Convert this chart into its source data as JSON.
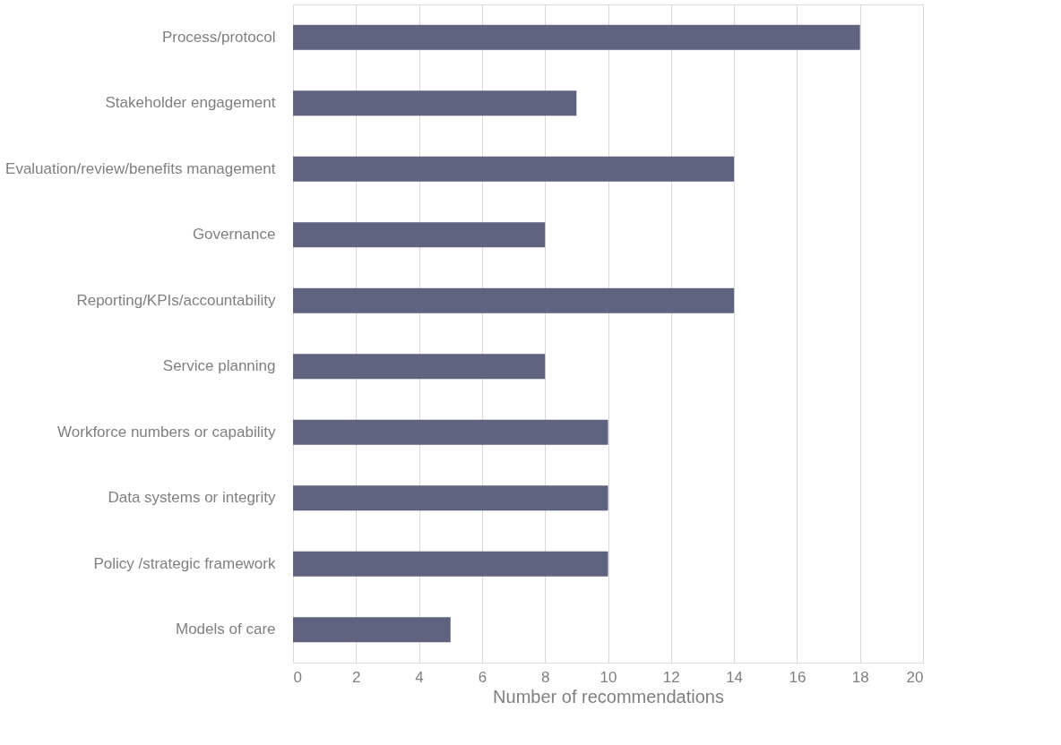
{
  "chart_data": {
    "type": "bar",
    "orientation": "horizontal",
    "xlabel": "Number of recommendations",
    "categories": [
      "Process/protocol",
      "Stakeholder engagement",
      "Evaluation/review/benefits management",
      "Governance",
      "Reporting/KPIs/accountability",
      "Service planning",
      "Workforce numbers or capability",
      "Data systems or integrity",
      "Policy /strategic framework",
      "Models of care"
    ],
    "values": [
      18,
      9,
      14,
      8,
      14,
      8,
      10,
      10,
      10,
      5
    ],
    "color": "#5f6380",
    "xlim": [
      0,
      20
    ],
    "xticks": [
      0,
      2,
      4,
      6,
      8,
      10,
      12,
      14,
      16,
      18,
      20
    ],
    "grid": "x"
  }
}
